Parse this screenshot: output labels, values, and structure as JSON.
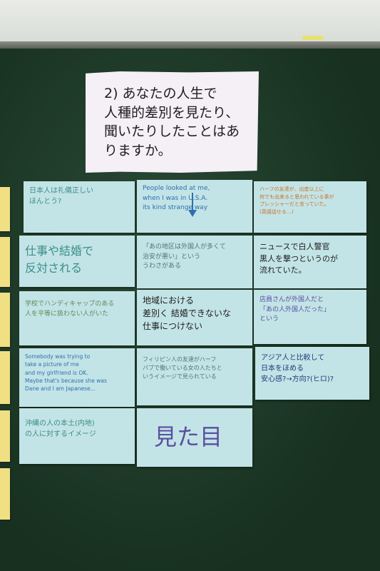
{
  "question_card": {
    "text": "2) あなたの人生で\n人種的差別を見たり、\n聞いたりしたことはありますか。"
  },
  "cards": {
    "c1": "日本人は礼儀正しい\nほんとう?",
    "c2": "People looked at me,\nwhen I was in U.S.A.\nits kind strange way",
    "c3": "ハーフの友達が、出産以上に\n何でも出来ると思われている事が\nプレッシャーだと言っていた。\n(英語話せる…)",
    "c4": "仕事や結婚で\n反対される",
    "c5": "「あの地区は外国人が多くて\n治安が悪い」という\nうわさがある",
    "c6": "ニュースで白人警官\n黒人を撃つというのが\n流れていた。",
    "c7": "学校でハンディキャップのある\n人を平等に扱わない人がいた",
    "c8": "地域における\n差別く 結婚できないな\n仕事につけない",
    "c9": "店員さんが外国人だと\n「あの人外国人だった」\nという",
    "c10": "Somebody was trying to\ntake a picture of me\nand my girlfriend is OK.\nMaybe that's because she was\nDane and I am Japanese...",
    "c11": "フィリピン人の友達がハーフ\nパブで働いている女の人たちと\nいうイメージで見られている",
    "c12": "アジア人と比較して\n日本をほめる\n安心感?→方向?(ヒロ)?",
    "c13": "沖縄の人の本土(内地)\nの人に対するイメージ",
    "c14": "見た目"
  },
  "colors": {
    "board": "#1f3a2b",
    "card": "#c3e4e6",
    "question_card": "#f4f0f6",
    "yellow_note": "#f0df83"
  }
}
